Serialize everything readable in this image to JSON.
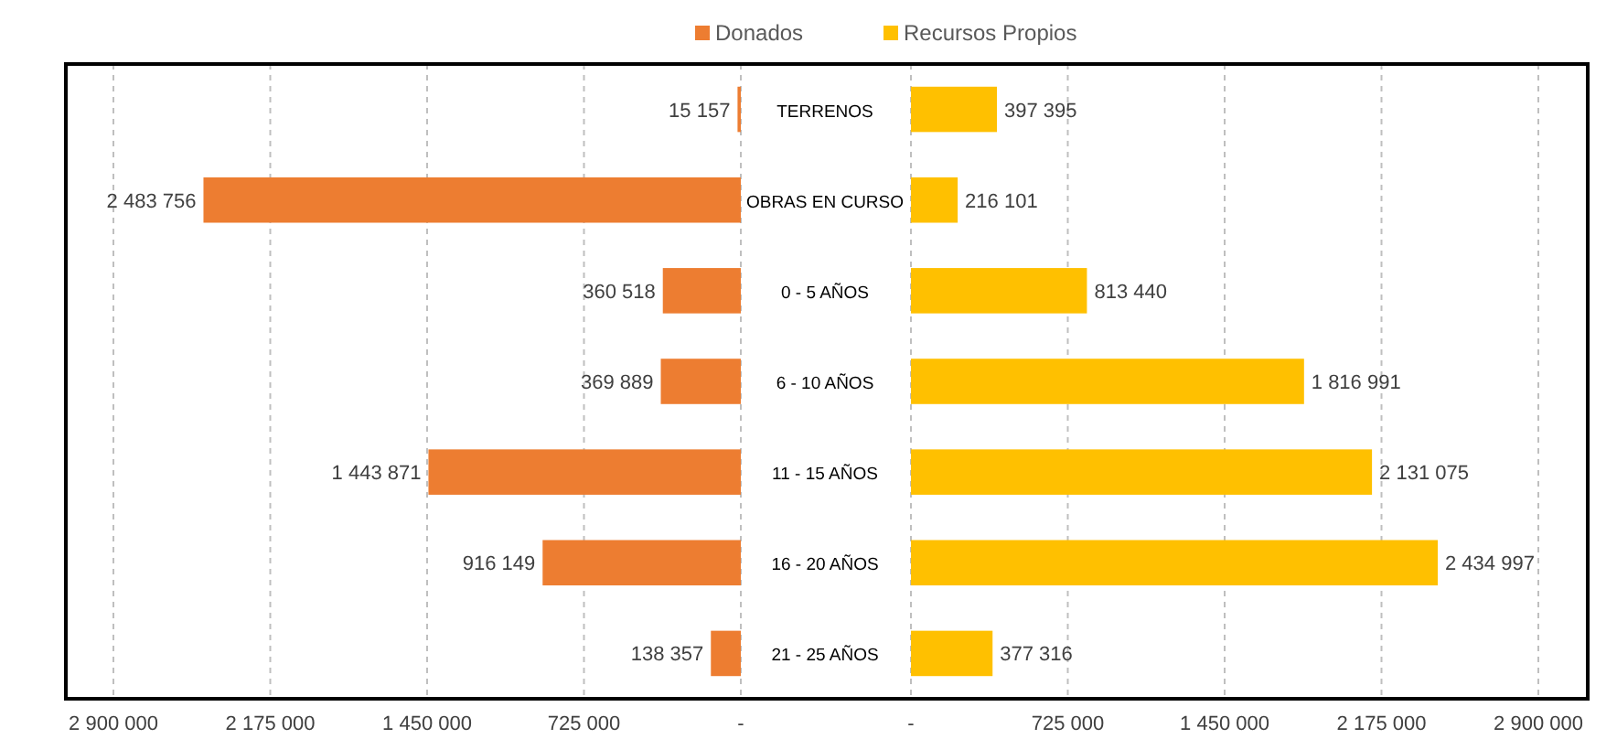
{
  "chart_data": [
    {
      "type": "bar",
      "orientation": "horizontal",
      "categories": [
        "TERRENOS",
        "OBRAS EN CURSO",
        "0 - 5 AÑOS",
        "6 - 10 AÑOS",
        "11 - 15 AÑOS",
        "16 - 20 AÑOS",
        "21 - 25 AÑOS"
      ],
      "series": [
        {
          "name": "Donados",
          "color": "#ed7d31",
          "values": [
            15157,
            2483756,
            360518,
            369889,
            1443871,
            916149,
            138357
          ]
        }
      ],
      "xlim": [
        2900000,
        0
      ],
      "xticks": [
        {
          "value": 2900000,
          "label": "2 900 000"
        },
        {
          "value": 2175000,
          "label": "2 175 000"
        },
        {
          "value": 1450000,
          "label": "1 450 000"
        },
        {
          "value": 725000,
          "label": "725 000"
        },
        {
          "value": 0,
          "label": "-"
        }
      ],
      "grid": "x",
      "legend": "top",
      "data_labels": true
    },
    {
      "type": "bar",
      "orientation": "horizontal",
      "categories": [
        null,
        null,
        null,
        null,
        null,
        null,
        null
      ],
      "series": [
        {
          "name": "Recursos Propios",
          "color": "#ffc000",
          "values": [
            397395,
            216101,
            813440,
            1816991,
            2131075,
            2434997,
            377316
          ]
        }
      ],
      "xlim": [
        0,
        2900000
      ],
      "xticks": [
        {
          "value": 0,
          "label": "-"
        },
        {
          "value": 725000,
          "label": "725 000"
        },
        {
          "value": 1450000,
          "label": "1 450 000"
        },
        {
          "value": 2175000,
          "label": "2 175 000"
        },
        {
          "value": 2900000,
          "label": "2 900 000"
        }
      ],
      "grid": "x",
      "legend": "top",
      "data_labels": true,
      "tick_labels": "x"
    }
  ]
}
